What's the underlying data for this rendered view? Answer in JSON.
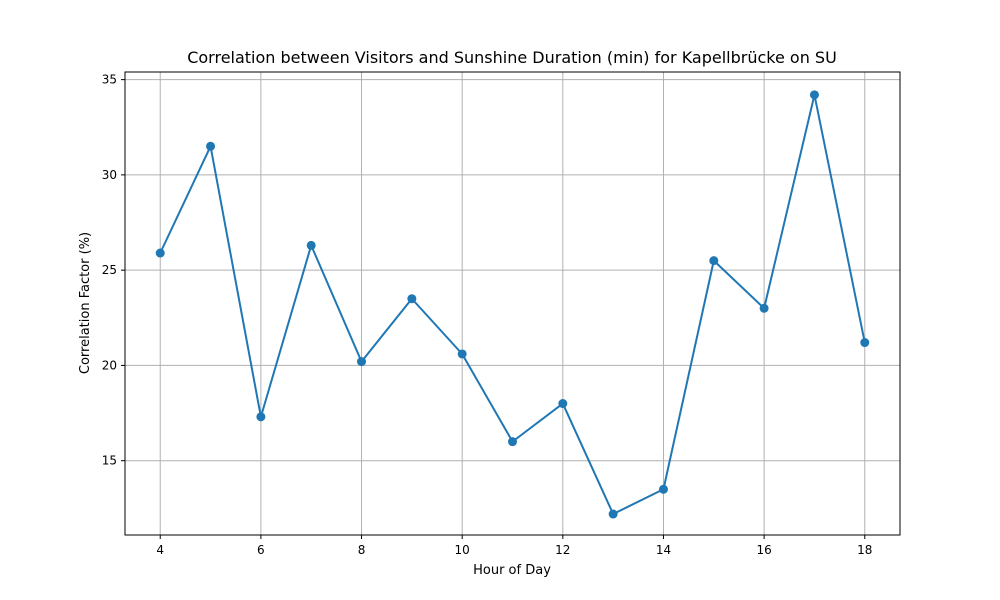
{
  "chart_data": {
    "type": "line",
    "title": "Correlation between Visitors and Sunshine Duration (min) for Kapellbrücke on SU",
    "xlabel": "Hour of Day",
    "ylabel": "Correlation Factor (%)",
    "x": [
      4,
      5,
      6,
      7,
      8,
      9,
      10,
      11,
      12,
      13,
      14,
      15,
      16,
      17,
      18
    ],
    "series": [
      {
        "values": [
          25.9,
          31.5,
          17.3,
          26.3,
          20.2,
          23.5,
          20.6,
          16.0,
          18.0,
          12.2,
          13.5,
          25.5,
          23.0,
          34.2,
          21.2
        ]
      }
    ],
    "xlim": [
      3.3,
      18.7
    ],
    "ylim": [
      11.1,
      35.4
    ],
    "xticks": [
      4,
      6,
      8,
      10,
      12,
      14,
      16,
      18
    ],
    "yticks": [
      15,
      20,
      25,
      30,
      35
    ],
    "grid": true,
    "marker": "circle",
    "line_color": "#1f77b4"
  }
}
